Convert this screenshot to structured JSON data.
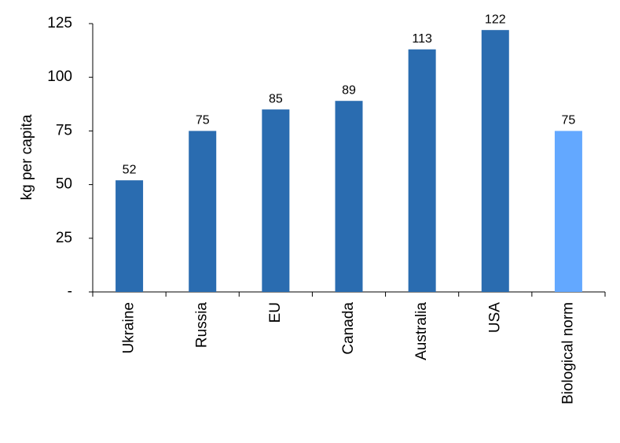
{
  "chart_data": {
    "type": "bar",
    "y_label": "kg per capita",
    "categories": [
      "Ukraine",
      "Russia",
      "EU",
      "Canada",
      "Australia",
      "USA",
      "Biological norm"
    ],
    "values": [
      52,
      75,
      85,
      89,
      113,
      122,
      75
    ],
    "colors": [
      "#2a6cb0",
      "#2a6cb0",
      "#2a6cb0",
      "#2a6cb0",
      "#2a6cb0",
      "#2a6cb0",
      "#63a8ff"
    ],
    "ylim": [
      0,
      125
    ],
    "yticks": [
      {
        "value": 0,
        "label": "-"
      },
      25,
      50,
      75,
      100,
      125
    ],
    "grid": false
  }
}
